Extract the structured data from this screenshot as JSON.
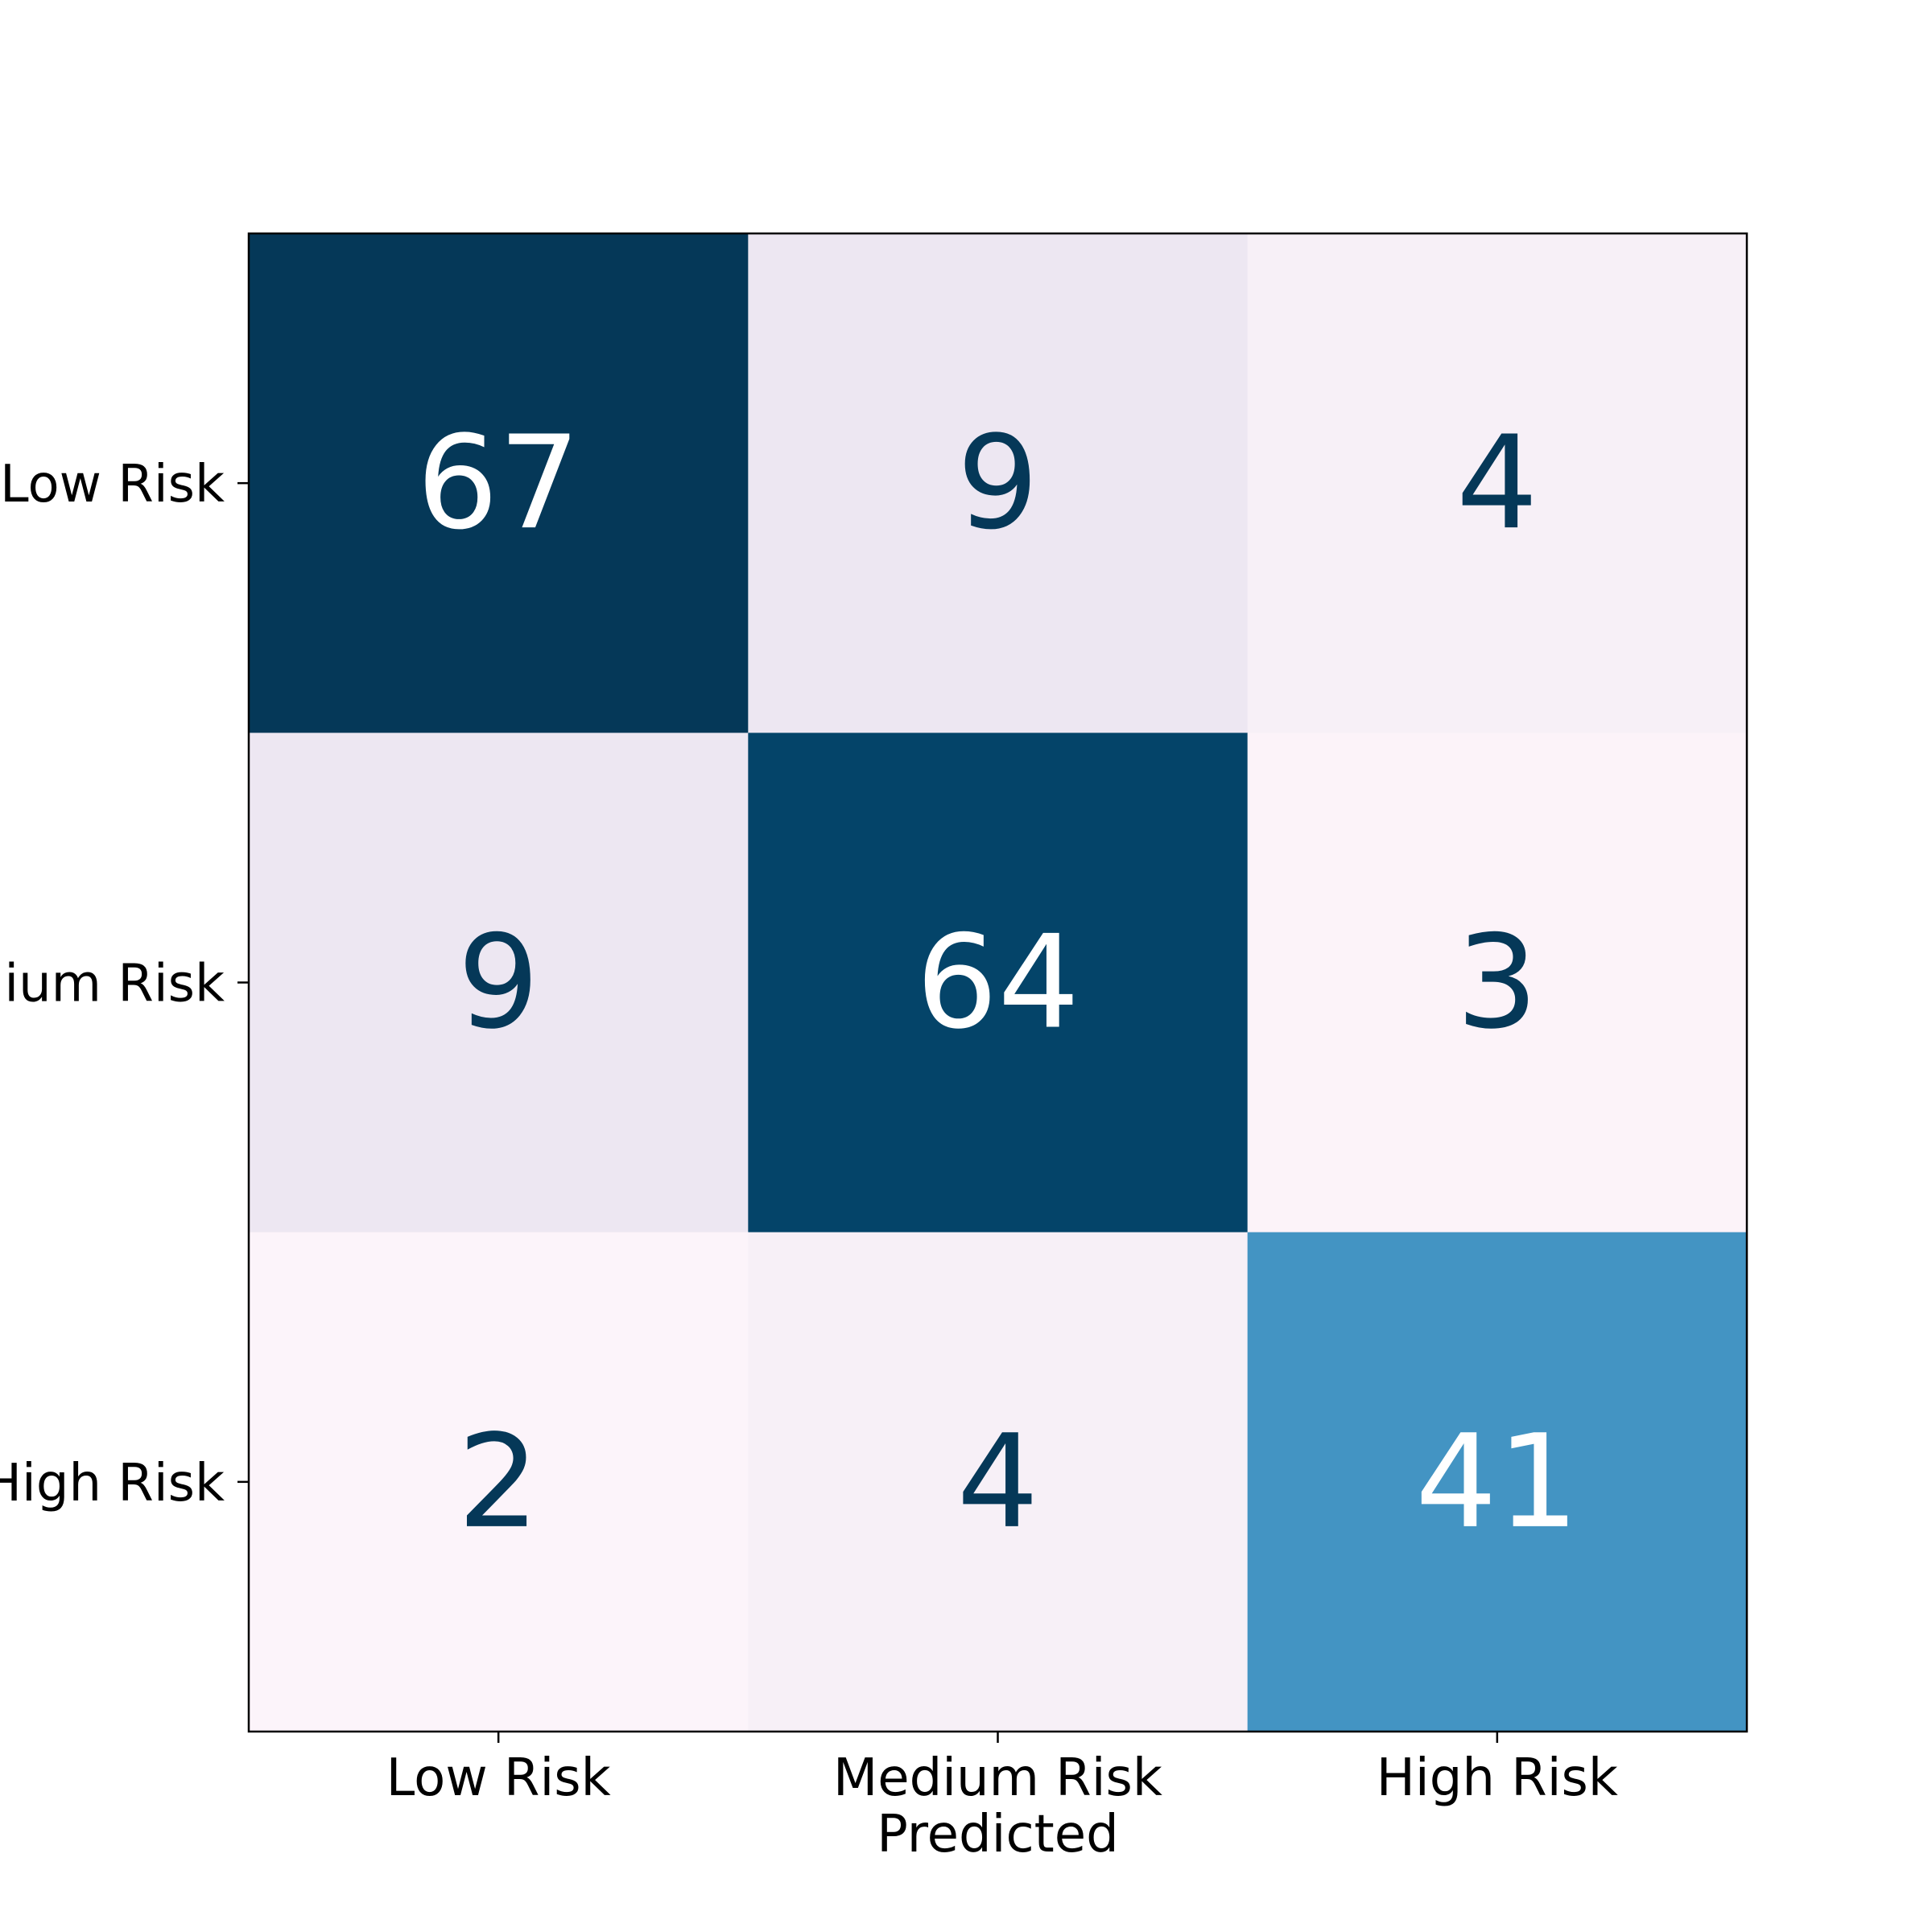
{
  "chart_data": {
    "type": "heatmap",
    "xlabel": "Predicted",
    "ylabel": "",
    "x_categories": [
      "Low Risk",
      "Medium Risk",
      "High Risk"
    ],
    "y_categories": [
      "Low Risk",
      "Medium Risk",
      "High Risk"
    ],
    "values": [
      [
        67,
        9,
        4
      ],
      [
        9,
        64,
        3
      ],
      [
        2,
        4,
        41
      ]
    ],
    "colormap": "PuBu",
    "cell_colors": [
      [
        "#053858",
        "#ede7f2",
        "#f7f0f7"
      ],
      [
        "#ede7f2",
        "#044469",
        "#fcf3f9"
      ],
      [
        "#fcf4fa",
        "#f7f0f7",
        "#4394c3"
      ]
    ],
    "annotation_dark_color": "#053858",
    "annotation_light_color": "#ffffff"
  }
}
